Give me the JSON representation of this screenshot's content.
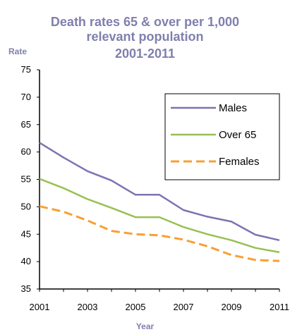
{
  "chart_data": {
    "type": "line",
    "title_lines": [
      "Death rates 65 & over per 1,000",
      "relevant population",
      "2001-2011"
    ],
    "xlabel": "Year",
    "ylabel": "Rate",
    "xlim": [
      2001,
      2011
    ],
    "ylim": [
      35,
      75
    ],
    "x_ticks": [
      "2001",
      "2003",
      "2005",
      "2007",
      "2009",
      "2011"
    ],
    "y_ticks": [
      "35",
      "40",
      "45",
      "50",
      "55",
      "60",
      "65",
      "70",
      "75"
    ],
    "x": [
      2001,
      2002,
      2003,
      2004,
      2005,
      2006,
      2007,
      2008,
      2009,
      2010,
      2011
    ],
    "grid": false,
    "legend_position": "upper-right",
    "series": [
      {
        "name": "Males",
        "color": "#7f72b2",
        "style": "solid",
        "values": [
          61.7,
          59.0,
          56.5,
          54.8,
          52.2,
          52.2,
          49.4,
          48.2,
          47.3,
          44.9,
          43.9
        ]
      },
      {
        "name": "Over 65",
        "color": "#99bf52",
        "style": "solid",
        "values": [
          55.1,
          53.4,
          51.4,
          49.8,
          48.1,
          48.1,
          46.3,
          45.0,
          43.9,
          42.5,
          41.7
        ]
      },
      {
        "name": "Females",
        "color": "#f99f33",
        "style": "dashed",
        "values": [
          50.1,
          49.1,
          47.5,
          45.6,
          45.0,
          44.8,
          44.0,
          42.8,
          41.2,
          40.3,
          40.1
        ]
      }
    ]
  }
}
